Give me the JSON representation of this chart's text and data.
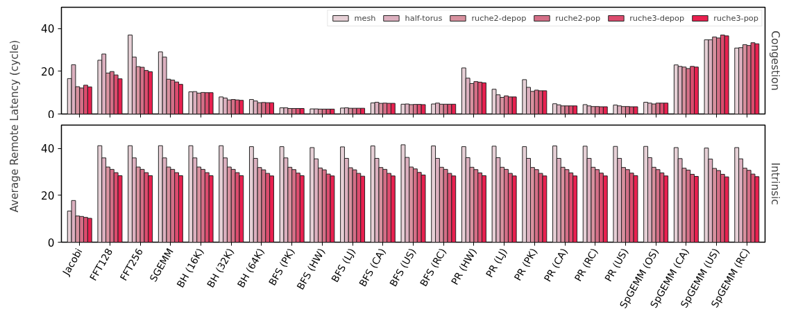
{
  "chart_data": [
    {
      "type": "bar",
      "title": "Congestion",
      "ylabel": "Average Remote Latency (cycle)",
      "categories": [
        null,
        null,
        null,
        null,
        null,
        null,
        null,
        null,
        null,
        null,
        null,
        null,
        null,
        null,
        null,
        null,
        null,
        null,
        null,
        null,
        null,
        null,
        null
      ],
      "ylim": [
        0,
        50
      ],
      "yticks": [
        0,
        20,
        40
      ],
      "tick_labels": "y",
      "legend": "top right",
      "grid": false,
      "series": [
        {
          "name": "mesh",
          "color": "#e6d0d6",
          "values": [
            16.6,
            25.2,
            37.0,
            29.1,
            10.4,
            8.0,
            6.8,
            2.9,
            2.4,
            2.8,
            5.2,
            4.6,
            4.7,
            21.6,
            11.6,
            16.1,
            4.8,
            4.4,
            4.2,
            5.5,
            23.0,
            34.8,
            30.9
          ]
        },
        {
          "name": "half-torus",
          "color": "#dcb0bf",
          "values": [
            23.1,
            28.1,
            26.7,
            26.7,
            10.5,
            7.5,
            6.1,
            2.9,
            2.4,
            2.9,
            5.5,
            4.7,
            5.1,
            16.8,
            9.0,
            12.5,
            4.3,
            3.8,
            3.8,
            5.1,
            22.3,
            34.8,
            31.1
          ]
        },
        {
          "name": "ruche2-depop",
          "color": "#d8919f",
          "values": [
            12.8,
            19.2,
            22.2,
            16.3,
            9.8,
            6.6,
            5.3,
            2.6,
            2.3,
            2.7,
            5.0,
            4.4,
            4.6,
            14.3,
            7.8,
            10.6,
            3.8,
            3.5,
            3.5,
            4.7,
            22.0,
            36.1,
            32.5
          ]
        },
        {
          "name": "ruche2-pop",
          "color": "#d46f87",
          "values": [
            12.2,
            19.9,
            21.9,
            15.9,
            10.1,
            6.8,
            5.4,
            2.6,
            2.3,
            2.7,
            5.1,
            4.5,
            4.6,
            15.2,
            8.5,
            11.2,
            3.8,
            3.5,
            3.5,
            5.1,
            21.3,
            35.6,
            32.1
          ]
        },
        {
          "name": "ruche3-depop",
          "color": "#dc4c6e",
          "values": [
            13.5,
            18.3,
            20.4,
            15.0,
            10.0,
            6.6,
            5.3,
            2.6,
            2.3,
            2.7,
            5.0,
            4.5,
            4.6,
            14.9,
            8.0,
            10.9,
            3.8,
            3.4,
            3.4,
            5.1,
            22.3,
            37.0,
            33.4
          ]
        },
        {
          "name": "ruche3-pop",
          "color": "#e8204f",
          "values": [
            12.7,
            16.5,
            19.8,
            13.9,
            10.0,
            6.4,
            5.3,
            2.6,
            2.3,
            2.7,
            5.0,
            4.4,
            4.6,
            14.6,
            8.0,
            10.9,
            3.8,
            3.4,
            3.4,
            5.1,
            22.0,
            36.6,
            32.9
          ]
        }
      ]
    },
    {
      "type": "bar",
      "title": "Intrinsic",
      "categories": [
        "Jacobi",
        "FFT128",
        "FFT256",
        "SGEMM",
        "BH (16K)",
        "BH (32K)",
        "BH (64K)",
        "BFS (PK)",
        "BFS (HW)",
        "BFS (LJ)",
        "BFS (CA)",
        "BFS (US)",
        "BFS (RC)",
        "PR (HW)",
        "PR (LJ)",
        "PR (PK)",
        "PR (CA)",
        "PR (RC)",
        "PR (US)",
        "SpGEMM (OS)",
        "SpGEMM (CA)",
        "SpGEMM (US)",
        "SpGEMM (RC)"
      ],
      "ylim": [
        0,
        50
      ],
      "yticks": [
        0,
        20,
        40
      ],
      "grid": false,
      "series": [
        {
          "color": "#e6d0d6",
          "values": [
            13.3,
            41.2,
            41.2,
            41.2,
            41.2,
            41.2,
            40.8,
            40.8,
            40.4,
            40.7,
            41.1,
            41.6,
            41.1,
            40.8,
            41.0,
            40.8,
            41.1,
            41.0,
            40.9,
            40.9,
            40.4,
            40.2,
            40.4
          ]
        },
        {
          "color": "#dcb0bf",
          "values": [
            17.8,
            36.0,
            36.0,
            36.0,
            36.0,
            36.0,
            35.8,
            36.0,
            35.6,
            35.8,
            35.8,
            36.2,
            35.8,
            36.1,
            36.1,
            35.8,
            35.8,
            35.8,
            35.8,
            36.1,
            35.7,
            35.5,
            35.6
          ]
        },
        {
          "color": "#d8919f",
          "values": [
            11.2,
            32.1,
            32.1,
            32.1,
            32.1,
            32.1,
            31.9,
            32.0,
            31.7,
            31.8,
            31.9,
            32.1,
            32.0,
            32.0,
            32.0,
            31.9,
            32.0,
            32.0,
            31.9,
            32.0,
            31.6,
            31.5,
            31.6
          ]
        },
        {
          "color": "#d46f87",
          "values": [
            11.0,
            31.1,
            31.1,
            31.1,
            31.1,
            31.1,
            30.9,
            31.0,
            30.9,
            30.9,
            31.1,
            31.3,
            31.1,
            31.0,
            31.1,
            31.0,
            31.0,
            31.0,
            31.0,
            31.0,
            30.8,
            30.6,
            30.7
          ]
        },
        {
          "color": "#dc4c6e",
          "values": [
            10.6,
            29.7,
            29.7,
            29.7,
            29.7,
            29.7,
            29.4,
            29.5,
            29.1,
            29.4,
            29.4,
            29.8,
            29.4,
            29.6,
            29.4,
            29.4,
            29.6,
            29.5,
            29.5,
            29.6,
            29.0,
            29.0,
            29.1
          ]
        },
        {
          "color": "#e8204f",
          "values": [
            10.2,
            28.4,
            28.4,
            28.4,
            28.4,
            28.4,
            28.3,
            28.4,
            28.3,
            28.2,
            28.3,
            28.7,
            28.3,
            28.4,
            28.3,
            28.3,
            28.3,
            28.3,
            28.4,
            28.3,
            28.1,
            27.9,
            28.0
          ]
        }
      ]
    }
  ]
}
